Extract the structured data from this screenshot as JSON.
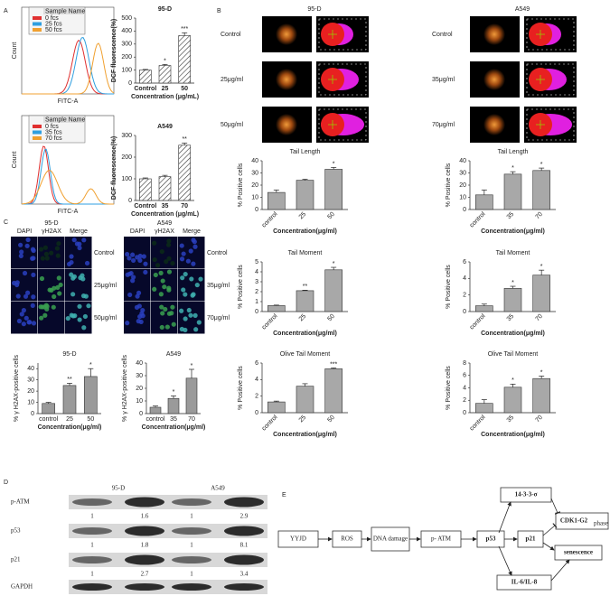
{
  "panel_labels": [
    "A",
    "B",
    "C",
    "D",
    "E"
  ],
  "flow_histograms": [
    {
      "legend_title": "Sample Name",
      "legend": [
        "0 fcs",
        "25 fcs",
        "50 fcs"
      ],
      "colors": [
        "#e03030",
        "#2f9fe0",
        "#f0a030"
      ],
      "xlabel": "FITC-A",
      "ylabel": "Count"
    },
    {
      "legend_title": "Sample Name",
      "legend": [
        "0 fcs",
        "35 fcs",
        "70 fcs"
      ],
      "colors": [
        "#e03030",
        "#2f9fe0",
        "#f0a030"
      ],
      "xlabel": "FITC-A",
      "ylabel": "Count"
    }
  ],
  "comet": {
    "columns": [
      "95-D",
      "A549"
    ],
    "rows": [
      [
        "Control",
        "25μg/ml",
        "50μg/ml"
      ],
      [
        "Control",
        "35μg/ml",
        "70μg/ml"
      ]
    ]
  },
  "if_images": {
    "titles": [
      "95-D",
      "A549"
    ],
    "channels": [
      "DAPI",
      "γH2AX",
      "Merge"
    ],
    "rows": [
      [
        "Control",
        "25μg/ml",
        "50μg/ml"
      ],
      [
        "Control",
        "35μg/ml",
        "70μg/ml"
      ]
    ]
  },
  "western": {
    "groups": [
      "95-D",
      "A549"
    ],
    "rows": [
      {
        "label": "p-ATM",
        "values": [
          [
            1,
            1.6
          ],
          [
            1,
            2.9
          ]
        ]
      },
      {
        "label": "p53",
        "values": [
          [
            1,
            1.8
          ],
          [
            1,
            8.1
          ]
        ]
      },
      {
        "label": "p21",
        "values": [
          [
            1,
            2.7
          ],
          [
            1,
            3.4
          ]
        ]
      },
      {
        "label": "GAPDH"
      }
    ]
  },
  "pathway": {
    "nodes": [
      {
        "label": "YYJD"
      },
      {
        "label": "ROS"
      },
      {
        "label": "DNA damage"
      },
      {
        "label": "p- ATM"
      },
      {
        "label": "p53"
      },
      {
        "label": "14-3-3-σ"
      },
      {
        "label": "p21"
      },
      {
        "label": "IL-6/IL-8"
      },
      {
        "label": "CDK1-G2",
        "sub": "phase"
      },
      {
        "label": "senescence"
      }
    ]
  },
  "chart_data": [
    {
      "type": "bar",
      "title": "95-D",
      "xlabel": "Concentration (μg/mL)",
      "ylabel": "DCF fluorescence(%)",
      "categories": [
        "Control",
        "25",
        "50"
      ],
      "values": [
        100,
        135,
        365
      ],
      "errors": [
        5,
        8,
        22
      ],
      "significance": [
        null,
        "*",
        "***"
      ],
      "ylim": [
        0,
        500
      ],
      "yticks": [
        0,
        100,
        200,
        300,
        400,
        500
      ],
      "color": "#ffffff",
      "hatch": true
    },
    {
      "type": "bar",
      "title": "A549",
      "xlabel": "Concentration (μg/mL)",
      "ylabel": "DCF fluorescence(%)",
      "categories": [
        "Control",
        "35",
        "70"
      ],
      "values": [
        100,
        110,
        255
      ],
      "errors": [
        4,
        6,
        10
      ],
      "significance": [
        null,
        null,
        "**"
      ],
      "ylim": [
        0,
        300
      ],
      "yticks": [
        0,
        100,
        200,
        300
      ],
      "color": "#ffffff",
      "hatch": true
    },
    {
      "type": "bar",
      "title": "Tail Length",
      "xlabel": "Concentration(μg/ml)",
      "ylabel": "% Positive cells",
      "categories": [
        "control",
        "25",
        "50"
      ],
      "values": [
        14,
        24,
        33
      ],
      "errors": [
        2,
        0.8,
        1.5
      ],
      "significance": [
        null,
        null,
        "*"
      ],
      "ylim": [
        0,
        40
      ],
      "yticks": [
        0,
        10,
        20,
        30,
        40
      ],
      "color": "#a8a8a8",
      "rotated_labels": true
    },
    {
      "type": "bar",
      "title": "Tail Length",
      "xlabel": "Concentration(μg/ml)",
      "ylabel": "% Positive cells",
      "categories": [
        "control",
        "35",
        "70"
      ],
      "values": [
        12,
        29,
        32
      ],
      "errors": [
        4,
        2,
        2
      ],
      "significance": [
        null,
        "*",
        "*"
      ],
      "ylim": [
        0,
        40
      ],
      "yticks": [
        0,
        10,
        20,
        30,
        40
      ],
      "color": "#a8a8a8",
      "rotated_labels": true
    },
    {
      "type": "bar",
      "title": "Tail Moment",
      "xlabel": "Concentration(μg/ml)",
      "ylabel": "% Positive cells",
      "categories": [
        "control",
        "25",
        "50"
      ],
      "values": [
        0.6,
        2.1,
        4.2
      ],
      "errors": [
        0.05,
        0.05,
        0.25
      ],
      "significance": [
        null,
        "**",
        "*"
      ],
      "ylim": [
        0,
        5
      ],
      "yticks": [
        0,
        1,
        2,
        3,
        4,
        5
      ],
      "color": "#a8a8a8",
      "rotated_labels": true
    },
    {
      "type": "bar",
      "title": "Tail Moment",
      "xlabel": "Concentration(μg/ml)",
      "ylabel": "% Positive cells",
      "categories": [
        "control",
        "35",
        "70"
      ],
      "values": [
        0.7,
        2.8,
        4.4
      ],
      "errors": [
        0.2,
        0.25,
        0.6
      ],
      "significance": [
        null,
        "*",
        "*"
      ],
      "ylim": [
        0,
        6
      ],
      "yticks": [
        0,
        2,
        4,
        6
      ],
      "color": "#a8a8a8",
      "rotated_labels": true
    },
    {
      "type": "bar",
      "title": "Olive Tail Moment",
      "xlabel": "Concentration(μg/ml)",
      "ylabel": "% Positive cells",
      "categories": [
        "control",
        "25",
        "50"
      ],
      "values": [
        1.3,
        3.2,
        5.3
      ],
      "errors": [
        0.1,
        0.3,
        0.1
      ],
      "significance": [
        null,
        null,
        "***"
      ],
      "ylim": [
        0,
        6
      ],
      "yticks": [
        0,
        2,
        4,
        6
      ],
      "color": "#a8a8a8",
      "rotated_labels": true
    },
    {
      "type": "bar",
      "title": "Olive Tail Moment",
      "xlabel": "Concentration(μg/ml)",
      "ylabel": "% Positive cells",
      "categories": [
        "control",
        "35",
        "70"
      ],
      "values": [
        1.5,
        4.1,
        5.5
      ],
      "errors": [
        0.6,
        0.5,
        0.4
      ],
      "significance": [
        null,
        "*",
        "*"
      ],
      "ylim": [
        0,
        8
      ],
      "yticks": [
        0,
        2,
        4,
        6,
        8
      ],
      "color": "#a8a8a8",
      "rotated_labels": true
    },
    {
      "type": "bar",
      "title": "95-D",
      "xlabel": "Concentration(μg/ml)",
      "ylabel": "% γ H2AX-positive cells",
      "categories": [
        "control",
        "25",
        "50"
      ],
      "values": [
        9,
        25,
        33
      ],
      "errors": [
        1,
        2,
        7
      ],
      "significance": [
        null,
        "**",
        "*"
      ],
      "ylim": [
        0,
        45
      ],
      "yticks": [
        0,
        10,
        20,
        30,
        40
      ],
      "color": "#9a9a9a"
    },
    {
      "type": "bar",
      "title": "A549",
      "xlabel": "Concentration(μg/ml)",
      "ylabel": "% γ H2AX-positive cells",
      "categories": [
        "control",
        "35",
        "70"
      ],
      "values": [
        5,
        12,
        28
      ],
      "errors": [
        1,
        2,
        7
      ],
      "significance": [
        null,
        "*",
        "*"
      ],
      "ylim": [
        0,
        40
      ],
      "yticks": [
        0,
        10,
        20,
        30,
        40
      ],
      "color": "#9a9a9a"
    }
  ]
}
